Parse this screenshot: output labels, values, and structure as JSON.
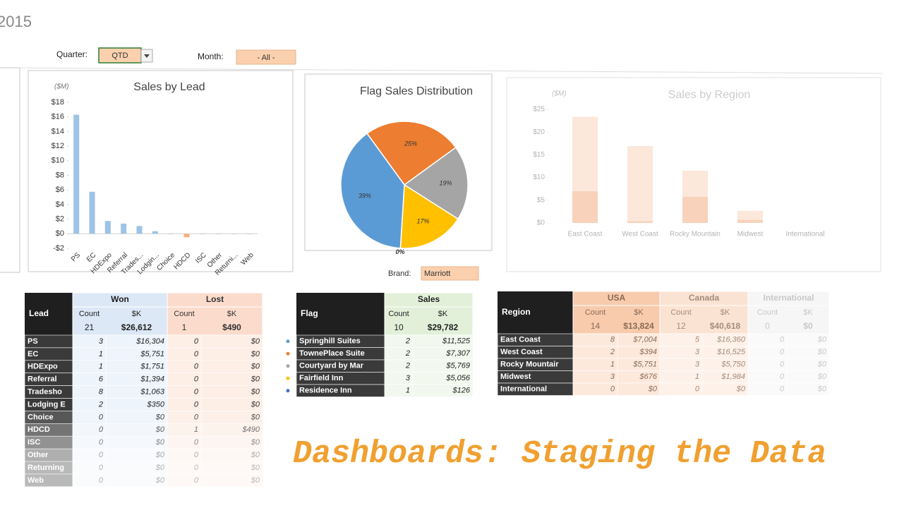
{
  "header": {
    "year": "2015"
  },
  "filters": {
    "quarter_label": "Quarter:",
    "quarter": "QTD",
    "month_label": "Month:",
    "month": "- All -",
    "brand_label": "Brand:",
    "brand": "Marriott"
  },
  "chart_data": [
    {
      "type": "bar",
      "title": "Sales by Lead",
      "y_label": "($M)",
      "categories": [
        "PS",
        "EC",
        "HDExpo",
        "Referral",
        "Trades...",
        "Lodgin...",
        "Choice",
        "HDCD",
        "ISC",
        "Other",
        "Returni...",
        "Web"
      ],
      "values": [
        16.3,
        5.75,
        1.75,
        1.39,
        1.06,
        0.35,
        0,
        -0.49,
        0,
        0,
        0,
        0
      ],
      "color": "#9dc3e6",
      "negative_color": "#f4b183",
      "ylim": [
        -2,
        18
      ],
      "yticks": [
        {
          "value": -2,
          "label": "-$2"
        },
        {
          "value": 0,
          "label": "$0"
        },
        {
          "value": 2,
          "label": "$2"
        },
        {
          "value": 4,
          "label": "$4"
        },
        {
          "value": 6,
          "label": "$6"
        },
        {
          "value": 8,
          "label": "$8"
        },
        {
          "value": 10,
          "label": "$10"
        },
        {
          "value": 12,
          "label": "$12"
        },
        {
          "value": 14,
          "label": "$14"
        },
        {
          "value": 16,
          "label": "$16"
        },
        {
          "value": 18,
          "label": "$18"
        }
      ]
    },
    {
      "type": "pie",
      "title": "Flag Sales Distribution",
      "values": [
        25,
        19,
        17,
        0,
        39
      ],
      "value_labels": [
        "25%",
        "19%",
        "17%",
        "0%",
        "39%"
      ],
      "colors": [
        "#ed7d31",
        "#a5a5a5",
        "#ffc000",
        "#264478",
        "#5b9bd5"
      ]
    },
    {
      "type": "stacked_bar",
      "title": "Sales by Region",
      "y_label": "($M)",
      "categories": [
        "East Coast",
        "West Coast",
        "Rocky Mountain",
        "Midwest",
        "International"
      ],
      "series": [
        {
          "color": "#f6c4a4",
          "values": [
            7.0,
            0.39,
            5.75,
            0.68,
            0
          ]
        },
        {
          "color": "#fbe0cf",
          "values": [
            16.36,
            16.53,
            5.75,
            1.98,
            0
          ]
        }
      ],
      "ylim": [
        0,
        25
      ],
      "yticks": [
        {
          "value": 0,
          "label": "$0"
        },
        {
          "value": 5,
          "label": "$5"
        },
        {
          "value": 10,
          "label": "$10"
        },
        {
          "value": 15,
          "label": "$15"
        },
        {
          "value": 20,
          "label": "$20"
        },
        {
          "value": 25,
          "label": "$25"
        }
      ]
    }
  ],
  "tables": [
    {
      "corner": "Lead",
      "groups": [
        "Won",
        "Lost"
      ],
      "subheads": [
        "Count",
        "$K",
        "Count",
        "$K"
      ],
      "totals": [
        "21",
        "$26,612",
        "1",
        "$490"
      ],
      "rows": [
        [
          "PS",
          "3",
          "$16,304",
          "0",
          "$0"
        ],
        [
          "EC",
          "1",
          "$5,751",
          "0",
          "$0"
        ],
        [
          "HDExpo",
          "1",
          "$1,751",
          "0",
          "$0"
        ],
        [
          "Referral",
          "6",
          "$1,394",
          "0",
          "$0"
        ],
        [
          "Tradesho",
          "8",
          "$1,063",
          "0",
          "$0"
        ],
        [
          "Lodging E",
          "2",
          "$350",
          "0",
          "$0"
        ],
        [
          "Choice",
          "0",
          "$0",
          "0",
          "$0"
        ],
        [
          "HDCD",
          "0",
          "$0",
          "1",
          "$490"
        ],
        [
          "ISC",
          "0",
          "$0",
          "0",
          "$0"
        ],
        [
          "Other",
          "0",
          "$0",
          "0",
          "$0"
        ],
        [
          "Returning",
          "0",
          "$0",
          "0",
          "$0"
        ],
        [
          "Web",
          "0",
          "$0",
          "0",
          "$0"
        ]
      ]
    },
    {
      "corner": "Flag",
      "groups": [
        "Sales"
      ],
      "subheads": [
        "Count",
        "$K"
      ],
      "totals": [
        "10",
        "$29,782"
      ],
      "bullet_colors": [
        "#5b9bd5",
        "#ed7d31",
        "#a5a5a5",
        "#ffc000",
        "#4472c4"
      ],
      "rows": [
        [
          "Springhill Suites",
          "2",
          "$11,525"
        ],
        [
          "TownePlace Suite",
          "2",
          "$7,307"
        ],
        [
          "Courtyard by Mar",
          "2",
          "$5,769"
        ],
        [
          "Fairfield Inn",
          "3",
          "$5,056"
        ],
        [
          "Residence Inn",
          "1",
          "$126"
        ]
      ]
    },
    {
      "corner": "Region",
      "groups": [
        "USA",
        "Canada",
        "International"
      ],
      "subheads": [
        "Count",
        "$K",
        "Count",
        "$K",
        "Count",
        "$K"
      ],
      "totals": [
        "14",
        "$13,824",
        "12",
        "$40,618",
        "0",
        "$0"
      ],
      "rows": [
        [
          "East Coast",
          "8",
          "$7,004",
          "5",
          "$16,360",
          "0",
          "$0"
        ],
        [
          "West Coast",
          "2",
          "$394",
          "3",
          "$16,525",
          "0",
          "$0"
        ],
        [
          "Rocky Mountair",
          "1",
          "$5,751",
          "3",
          "$5,750",
          "0",
          "$0"
        ],
        [
          "Midwest",
          "3",
          "$676",
          "1",
          "$1,984",
          "0",
          "$0"
        ],
        [
          "International",
          "0",
          "$0",
          "0",
          "$0",
          "0",
          "$0"
        ]
      ]
    }
  ],
  "banner": "Dashboards: Staging the Data"
}
